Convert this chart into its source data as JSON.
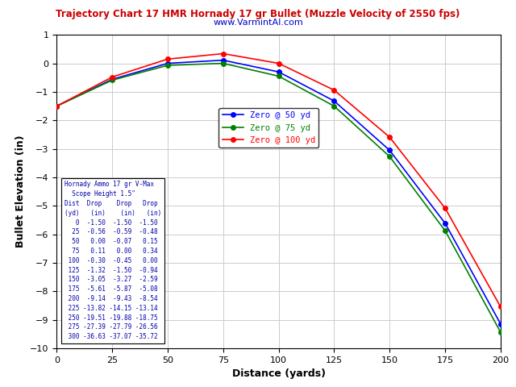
{
  "title": "Trajectory Chart 17 HMR Hornady 17 gr Bullet (Muzzle Velocity of 2550 fps)",
  "subtitle": "www.VarmintAI.com",
  "xlabel": "Distance (yards)",
  "ylabel": "Bullet Elevation (in)",
  "xlim": [
    0,
    200
  ],
  "ylim": [
    -10,
    1
  ],
  "yticks": [
    1,
    0,
    -1,
    -2,
    -3,
    -4,
    -5,
    -6,
    -7,
    -8,
    -9,
    -10
  ],
  "xticks": [
    0,
    25,
    50,
    75,
    100,
    125,
    150,
    175,
    200
  ],
  "distances": [
    0,
    25,
    50,
    75,
    100,
    125,
    150,
    175,
    200
  ],
  "zero50": [
    -1.5,
    -0.56,
    0.0,
    0.11,
    -0.3,
    -1.32,
    -3.05,
    -5.61,
    -9.14
  ],
  "zero75": [
    -1.5,
    -0.59,
    -0.07,
    0.0,
    -0.45,
    -1.5,
    -3.27,
    -5.87,
    -9.43
  ],
  "zero100": [
    -1.5,
    -0.48,
    0.15,
    0.34,
    0.0,
    -0.94,
    -2.59,
    -5.08,
    -8.54
  ],
  "color_blue": "#0000FF",
  "color_green": "#008000",
  "color_red": "#FF0000",
  "title_color": "#CC0000",
  "subtitle_color": "#0000CC",
  "table_text_color": "#0000AA",
  "bg_color": "#FFFFFF",
  "grid_color": "#CCCCCC",
  "legend_labels": [
    "Zero @ 50 yd",
    "Zero @ 75 yd",
    "Zero @ 100 yd"
  ],
  "table_lines": [
    "Hornady Ammo 17 gr V-Max",
    "  Scope Height 1.5\"",
    "Dist  Drop    Drop   Drop",
    "(yd)   (in)    (in)   (in)",
    "   0  -1.50  -1.50  -1.50",
    "  25  -0.56  -0.59  -0.48",
    "  50   0.00  -0.07   0.15",
    "  75   0.11   0.00   0.34",
    " 100  -0.30  -0.45   0.00",
    " 125  -1.32  -1.50  -0.94",
    " 150  -3.05  -3.27  -2.59",
    " 175  -5.61  -5.87  -5.08",
    " 200  -9.14  -9.43  -8.54",
    " 225 -13.82 -14.15 -13.14",
    " 250 -19.51 -19.88 -18.75",
    " 275 -27.39 -27.79 -26.56",
    " 300 -36.63 -37.07 -35.72"
  ]
}
